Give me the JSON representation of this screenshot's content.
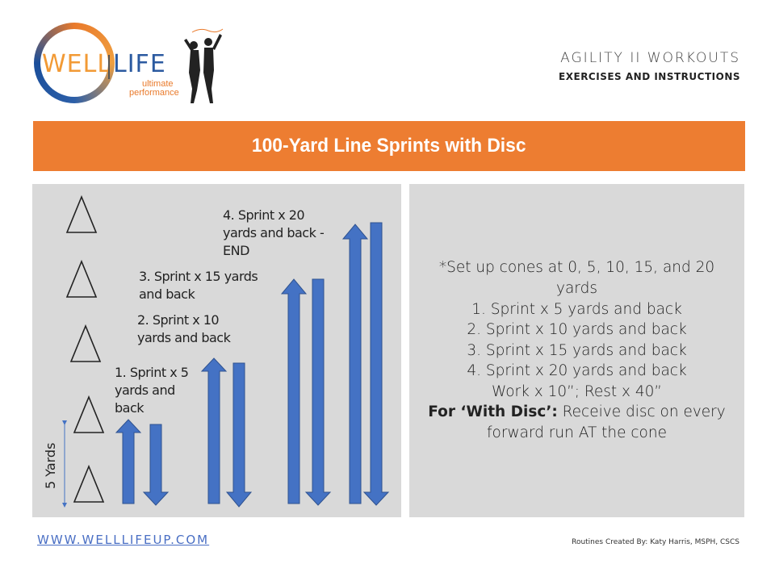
{
  "logo": {
    "word_left": "WELL",
    "word_right": "LIFE",
    "tag_line1": "ultimate",
    "tag_line2": "performance"
  },
  "header": {
    "title": "AGILITY II WORKOUTS",
    "subtitle": "EXERCISES AND INSTRUCTIONS"
  },
  "banner": {
    "title": "100-Yard Line Sprints with Disc"
  },
  "diagram": {
    "distance_label": "5 Yards",
    "steps": [
      {
        "label_line1": "1. Sprint x 5",
        "label_line2": "yards and",
        "label_line3": "back"
      },
      {
        "label_line1": "2. Sprint x 10",
        "label_line2": "yards and back"
      },
      {
        "label_line1": "3. Sprint x 15 yards",
        "label_line2": "and back"
      },
      {
        "label_line1": "4. Sprint x 20",
        "label_line2": "yards and back -",
        "label_line3": "END"
      }
    ],
    "colors": {
      "arrow": "#4472c4",
      "arrow_border": "#2f528f"
    }
  },
  "instructions": {
    "line1": "*Set up cones at 0, 5, 10, 15, and 20",
    "line2": "yards",
    "line3": "1. Sprint x 5 yards and back",
    "line4": "2. Sprint x 10 yards and back",
    "line5": "3. Sprint x 15 yards and back",
    "line6": "4. Sprint x 20 yards and back",
    "line7": "Work x 10”; Rest x 40”",
    "line8_bold": "For ‘With Disc’:",
    "line8_rest": " Receive disc on every",
    "line9": "forward run AT the cone"
  },
  "footer": {
    "url": "WWW.WELLLIFEUP.COM",
    "credit": "Routines Created By: Katy Harris, MSPH, CSCS"
  },
  "colors": {
    "accent": "#ed7d31",
    "panel": "#d9d9d9",
    "link": "#4a6fc4"
  }
}
